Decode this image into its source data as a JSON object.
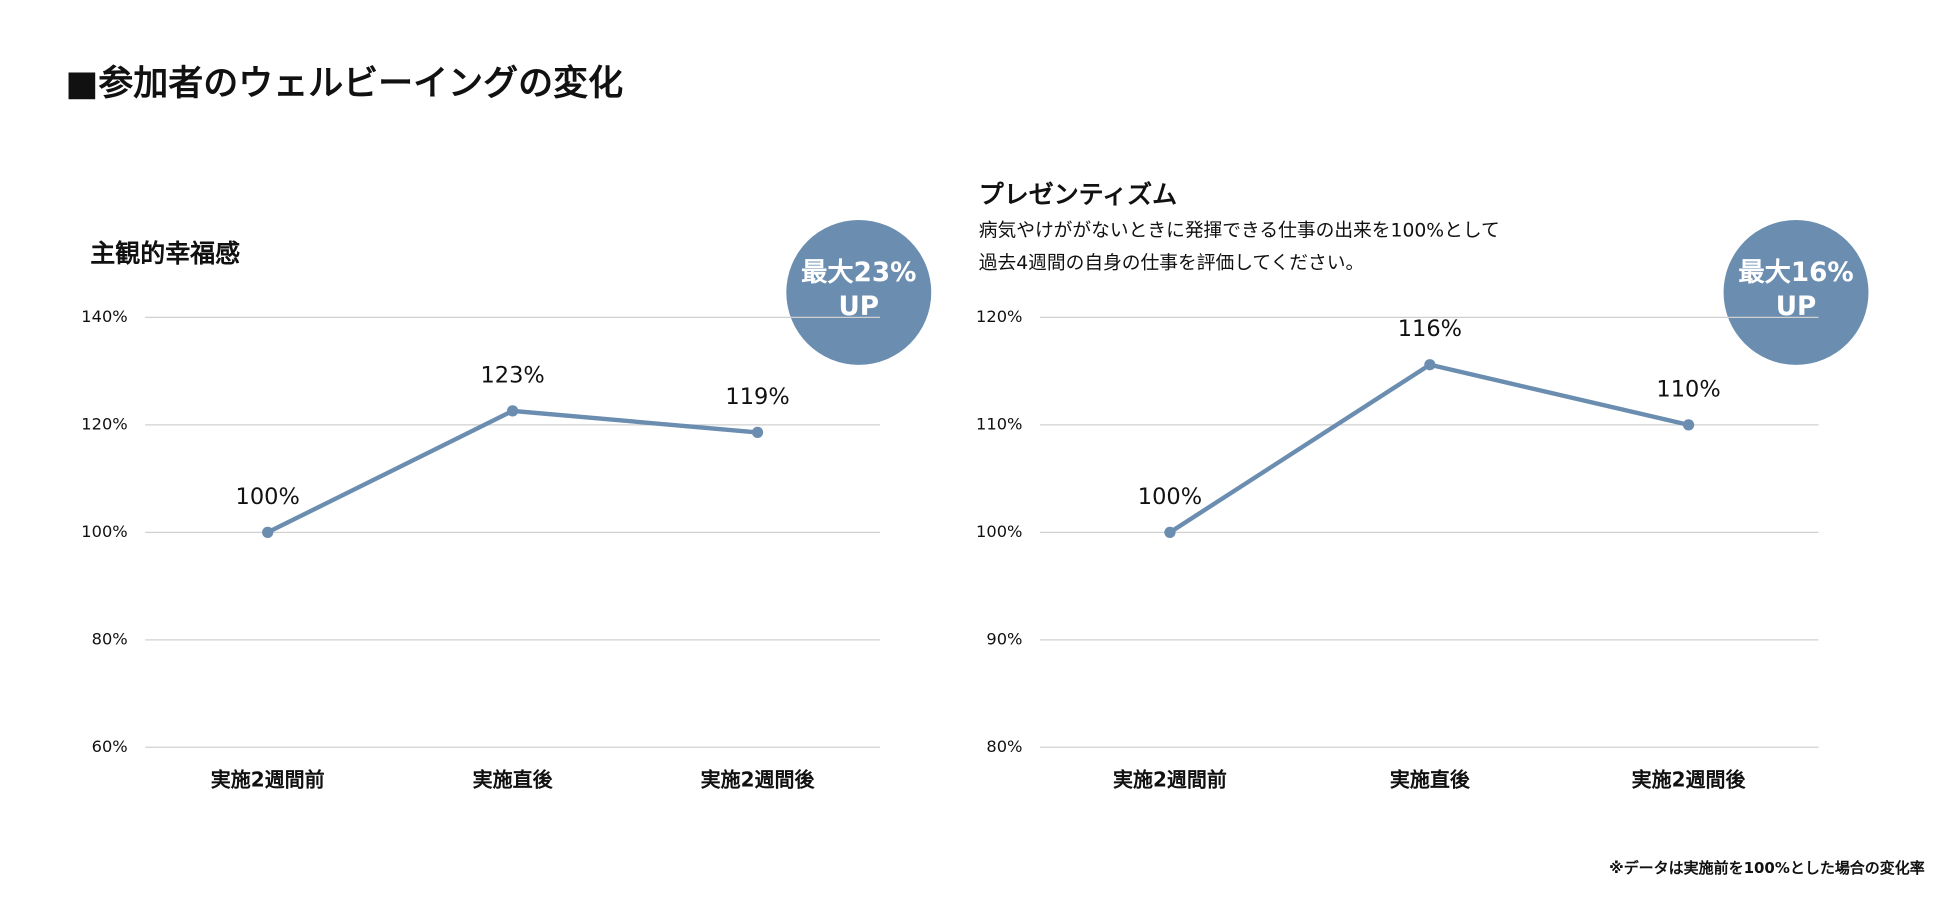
{
  "header": {
    "title": "■参加者のウェルビーイングの変化"
  },
  "footnote": "※データは実施前を100%とした場合の変化率",
  "chart_data": [
    {
      "type": "line",
      "title": "主観的幸福感",
      "badge": [
        "最大23%",
        "UP"
      ],
      "categories": [
        "実施2週間前",
        "実施直後",
        "実施2週間後"
      ],
      "values": [
        100,
        122.6,
        118.6
      ],
      "value_labels": [
        "100%",
        "123%",
        "119%"
      ],
      "color": "#6a8db0",
      "grid": true,
      "ylim": [
        60,
        140
      ],
      "yticks": [
        {
          "value": 60,
          "label": "60%"
        },
        {
          "value": 80,
          "label": "80%"
        },
        {
          "value": 100,
          "label": "100%"
        },
        {
          "value": 120,
          "label": "120%"
        },
        {
          "value": 140,
          "label": "140%"
        }
      ]
    },
    {
      "type": "line",
      "title": "プレゼンティズム",
      "subtitle": [
        "病気やけががないときに発揮できる仕事の出来を100%として",
        "過去4週間の自身の仕事を評価してください。"
      ],
      "badge": [
        "最大16%",
        "UP"
      ],
      "categories": [
        "実施2週間前",
        "実施直後",
        "実施2週間後"
      ],
      "values": [
        100,
        115.6,
        110
      ],
      "value_labels": [
        "100%",
        "116%",
        "110%"
      ],
      "color": "#6a8db0",
      "grid": true,
      "ylim": [
        80,
        120
      ],
      "yticks": [
        {
          "value": 80,
          "label": "80%"
        },
        {
          "value": 90,
          "label": "90%"
        },
        {
          "value": 100,
          "label": "100%"
        },
        {
          "value": 110,
          "label": "110%"
        },
        {
          "value": 120,
          "label": "120%"
        }
      ]
    }
  ]
}
